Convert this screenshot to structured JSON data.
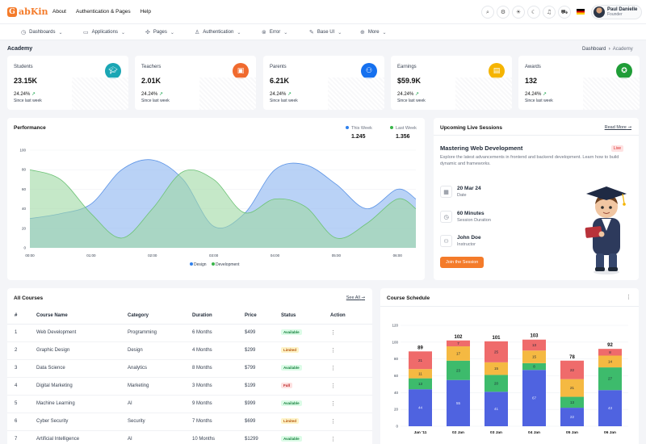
{
  "brand": {
    "logo_letter": "G",
    "name": "abKin"
  },
  "topnav": [
    "About",
    "Authentication & Pages",
    "Help"
  ],
  "toolbar_icons": [
    "search-icon",
    "settings-icon",
    "sun-icon",
    "moon-icon",
    "bell-icon",
    "cart-icon"
  ],
  "user": {
    "name": "Paul Danielle",
    "role": "Founder"
  },
  "menu": [
    {
      "label": "Dashboards",
      "icon": "dashboard-icon"
    },
    {
      "label": "Applications",
      "icon": "grid-icon"
    },
    {
      "label": "Pages",
      "icon": "pages-icon"
    },
    {
      "label": "Authentication",
      "icon": "user-icon"
    },
    {
      "label": "Error",
      "icon": "error-icon"
    },
    {
      "label": "Base UI",
      "icon": "brush-icon"
    },
    {
      "label": "More",
      "icon": "more-icon"
    }
  ],
  "page": {
    "title": "Academy",
    "breadcrumb": [
      "Dashboard",
      "Academy"
    ]
  },
  "stats": [
    {
      "label": "Students",
      "value": "23.15K",
      "change": "24.24%",
      "sub": "Since last week",
      "color": "#1aa6b4",
      "icon": "graduation-cap-icon"
    },
    {
      "label": "Teachers",
      "value": "2.01K",
      "change": "24.24%",
      "sub": "Since last week",
      "color": "#f06a2e",
      "icon": "teacher-icon"
    },
    {
      "label": "Parents",
      "value": "6.21K",
      "change": "24.24%",
      "sub": "Since last week",
      "color": "#1570ef",
      "icon": "parents-icon"
    },
    {
      "label": "Earnings",
      "value": "$59.9K",
      "change": "24.24%",
      "sub": "Since last week",
      "color": "#f5b400",
      "icon": "wallet-icon"
    },
    {
      "label": "Awards",
      "value": "132",
      "change": "24.24%",
      "sub": "Since last week",
      "color": "#1f9d37",
      "icon": "award-icon"
    }
  ],
  "performance": {
    "title": "Performance",
    "legend": [
      {
        "name": "This Week",
        "value": "1.245",
        "color": "#2f80ed"
      },
      {
        "name": "Last Week",
        "value": "1.356",
        "color": "#3ab54a"
      }
    ],
    "chart_data": {
      "type": "area",
      "x_labels": [
        "00:00",
        "01:00",
        "02:00",
        "03:00",
        "04:00",
        "05:00",
        "06:00"
      ],
      "ylim": [
        0,
        100
      ],
      "y_ticks": [
        0,
        20,
        40,
        60,
        80,
        100
      ],
      "series": [
        {
          "name": "Design",
          "color": "#8ab4f0",
          "x": [
            0,
            0.5,
            1,
            1.5,
            2,
            2.5,
            3,
            3.5,
            4,
            4.5,
            5,
            5.5,
            6,
            6.3
          ],
          "values": [
            30,
            35,
            45,
            80,
            90,
            70,
            22,
            35,
            80,
            85,
            65,
            40,
            60,
            50
          ]
        },
        {
          "name": "Development",
          "color": "#9fd9a4",
          "x": [
            0,
            0.5,
            1,
            1.5,
            2,
            2.5,
            3,
            3.5,
            4,
            4.5,
            5,
            5.5,
            6,
            6.3
          ],
          "values": [
            80,
            70,
            35,
            10,
            40,
            78,
            70,
            36,
            50,
            42,
            10,
            25,
            50,
            40
          ]
        }
      ]
    }
  },
  "live": {
    "title": "Upcoming Live Sessions",
    "read_more": "Read More",
    "session_title": "Mastering Web Development",
    "badge": "Live",
    "description": "Explore the latest advancements in frontend and backend development. Learn how to build dynamic and frameworks.",
    "rows": [
      {
        "icon": "calendar-icon",
        "main": "20 Mar 24",
        "sub": "Date"
      },
      {
        "icon": "clock-icon",
        "main": "60 Minutes",
        "sub": "Session Duration"
      },
      {
        "icon": "instructor-icon",
        "main": "John Doe",
        "sub": "Instructor"
      }
    ],
    "join_label": "Join the Session"
  },
  "courses": {
    "title": "All Courses",
    "see_all": "See All",
    "columns": [
      "#",
      "Course Name",
      "Category",
      "Duration",
      "Price",
      "Status",
      "Action"
    ],
    "rows": [
      [
        "1",
        "Web Development",
        "Programming",
        "6 Months",
        "$499",
        "Available"
      ],
      [
        "2",
        "Graphic Design",
        "Design",
        "4 Months",
        "$299",
        "Limited"
      ],
      [
        "3",
        "Data Science",
        "Analytics",
        "8 Months",
        "$799",
        "Available"
      ],
      [
        "4",
        "Digital Marketing",
        "Marketing",
        "3 Months",
        "$199",
        "Full"
      ],
      [
        "5",
        "Machine Learning",
        "AI",
        "9 Months",
        "$999",
        "Available"
      ],
      [
        "6",
        "Cyber Security",
        "Security",
        "7 Months",
        "$699",
        "Limited"
      ],
      [
        "7",
        "Artificial Intelligence",
        "AI",
        "10 Months",
        "$1299",
        "Available"
      ]
    ]
  },
  "schedule": {
    "title": "Course Schedule",
    "chart_data": {
      "type": "bar",
      "stacked": true,
      "categories": [
        "Jan '11",
        "02 Jan",
        "03 Jan",
        "04 Jan",
        "05 Jan",
        "06 Jan"
      ],
      "ylim": [
        0,
        120
      ],
      "y_ticks": [
        0,
        20,
        40,
        60,
        80,
        100,
        120
      ],
      "totals": [
        89,
        102,
        101,
        103,
        78,
        92
      ],
      "series": [
        {
          "color": "#4f63e0",
          "values": [
            44,
            55,
            41,
            67,
            22,
            43
          ]
        },
        {
          "color": "#3dbb6c",
          "values": [
            13,
            23,
            20,
            8,
            13,
            27
          ]
        },
        {
          "color": "#f5b942",
          "values": [
            11,
            17,
            15,
            15,
            21,
            14
          ]
        },
        {
          "color": "#ef6b6b",
          "values": [
            21,
            7,
            25,
            13,
            22,
            8
          ]
        }
      ]
    }
  }
}
